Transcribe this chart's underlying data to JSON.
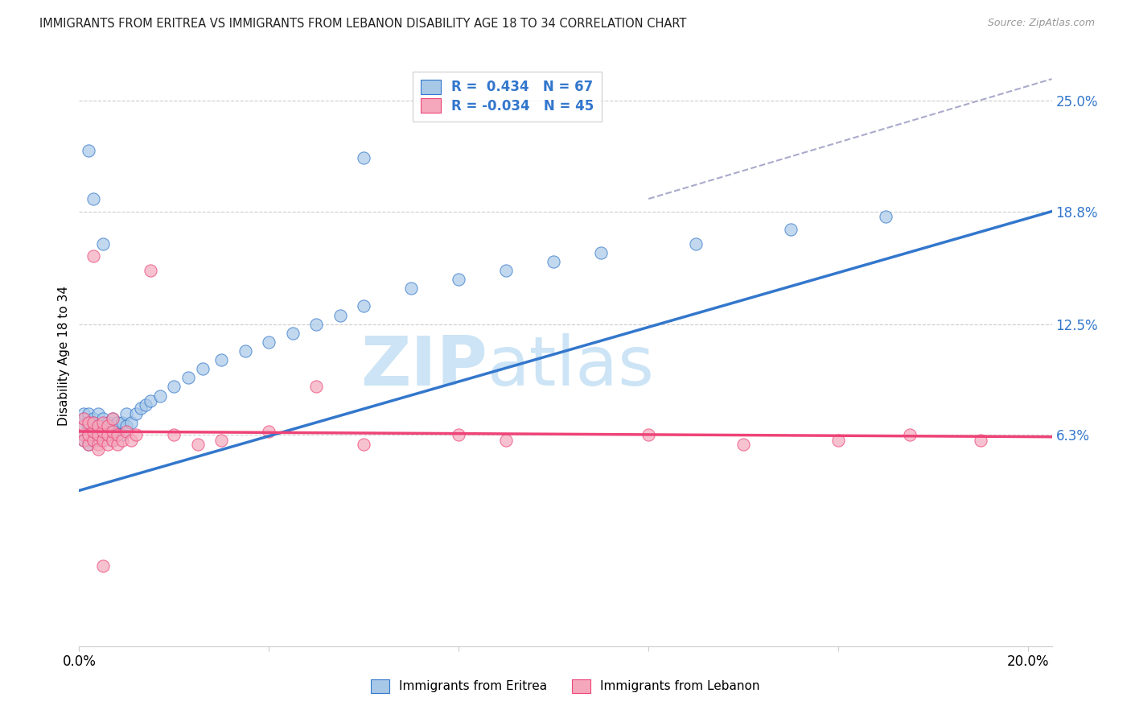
{
  "title": "IMMIGRANTS FROM ERITREA VS IMMIGRANTS FROM LEBANON DISABILITY AGE 18 TO 34 CORRELATION CHART",
  "source": "Source: ZipAtlas.com",
  "ylabel": "Disability Age 18 to 34",
  "xlim": [
    0.0,
    0.205
  ],
  "ylim": [
    -0.055,
    0.27
  ],
  "xticks": [
    0.0,
    0.04,
    0.08,
    0.12,
    0.16,
    0.2
  ],
  "xticklabels": [
    "0.0%",
    "",
    "",
    "",
    "",
    "20.0%"
  ],
  "yticks_right": [
    0.063,
    0.125,
    0.188,
    0.25
  ],
  "ytick_labels_right": [
    "6.3%",
    "12.5%",
    "18.8%",
    "25.0%"
  ],
  "r_eritrea": "0.434",
  "n_eritrea": "67",
  "r_lebanon": "-0.034",
  "n_lebanon": "45",
  "color_eritrea": "#a8c8e8",
  "color_lebanon": "#f5a8bc",
  "line_eritrea": "#3377cc",
  "line_lebanon": "#ee4477",
  "line_ref_color": "#aaaacc",
  "watermark": "ZIPatlas",
  "watermark_color": "#cce4f5",
  "background_color": "#ffffff",
  "grid_color": "#cccccc",
  "eritrea_x": [
    0.001,
    0.001,
    0.001,
    0.001,
    0.001,
    0.002,
    0.002,
    0.002,
    0.002,
    0.002,
    0.002,
    0.002,
    0.003,
    0.003,
    0.003,
    0.003,
    0.003,
    0.003,
    0.004,
    0.004,
    0.004,
    0.004,
    0.004,
    0.005,
    0.005,
    0.005,
    0.005,
    0.006,
    0.006,
    0.006,
    0.007,
    0.007,
    0.007,
    0.008,
    0.008,
    0.009,
    0.009,
    0.01,
    0.01,
    0.011,
    0.012,
    0.013,
    0.014,
    0.015,
    0.017,
    0.02,
    0.023,
    0.026,
    0.03,
    0.035,
    0.04,
    0.045,
    0.05,
    0.055,
    0.06,
    0.07,
    0.08,
    0.09,
    0.1,
    0.11,
    0.13,
    0.15,
    0.17,
    0.005,
    0.003,
    0.002,
    0.06
  ],
  "eritrea_y": [
    0.063,
    0.068,
    0.072,
    0.06,
    0.075,
    0.065,
    0.06,
    0.068,
    0.075,
    0.058,
    0.063,
    0.07,
    0.063,
    0.068,
    0.072,
    0.06,
    0.065,
    0.07,
    0.063,
    0.068,
    0.075,
    0.06,
    0.065,
    0.063,
    0.068,
    0.072,
    0.06,
    0.065,
    0.07,
    0.063,
    0.068,
    0.072,
    0.06,
    0.065,
    0.07,
    0.063,
    0.07,
    0.068,
    0.075,
    0.07,
    0.075,
    0.078,
    0.08,
    0.082,
    0.085,
    0.09,
    0.095,
    0.1,
    0.105,
    0.11,
    0.115,
    0.12,
    0.125,
    0.13,
    0.135,
    0.145,
    0.15,
    0.155,
    0.16,
    0.165,
    0.17,
    0.178,
    0.185,
    0.17,
    0.195,
    0.222,
    0.218
  ],
  "lebanon_x": [
    0.001,
    0.001,
    0.001,
    0.001,
    0.002,
    0.002,
    0.002,
    0.003,
    0.003,
    0.003,
    0.003,
    0.004,
    0.004,
    0.004,
    0.004,
    0.005,
    0.005,
    0.005,
    0.006,
    0.006,
    0.006,
    0.007,
    0.007,
    0.007,
    0.008,
    0.008,
    0.009,
    0.01,
    0.011,
    0.012,
    0.015,
    0.02,
    0.025,
    0.03,
    0.04,
    0.05,
    0.06,
    0.08,
    0.09,
    0.12,
    0.14,
    0.16,
    0.175,
    0.19,
    0.005
  ],
  "lebanon_y": [
    0.063,
    0.068,
    0.06,
    0.072,
    0.058,
    0.063,
    0.07,
    0.06,
    0.065,
    0.07,
    0.163,
    0.058,
    0.063,
    0.068,
    0.055,
    0.06,
    0.065,
    0.07,
    0.058,
    0.063,
    0.068,
    0.06,
    0.065,
    0.072,
    0.058,
    0.063,
    0.06,
    0.065,
    0.06,
    0.063,
    0.155,
    0.063,
    0.058,
    0.06,
    0.065,
    0.09,
    0.058,
    0.063,
    0.06,
    0.063,
    0.058,
    0.06,
    0.063,
    0.06,
    -0.01
  ],
  "blue_line": [
    0.0,
    0.205,
    0.032,
    0.188
  ],
  "pink_line": [
    0.0,
    0.205,
    0.065,
    0.062
  ],
  "ref_line": [
    0.12,
    0.205,
    0.195,
    0.262
  ]
}
